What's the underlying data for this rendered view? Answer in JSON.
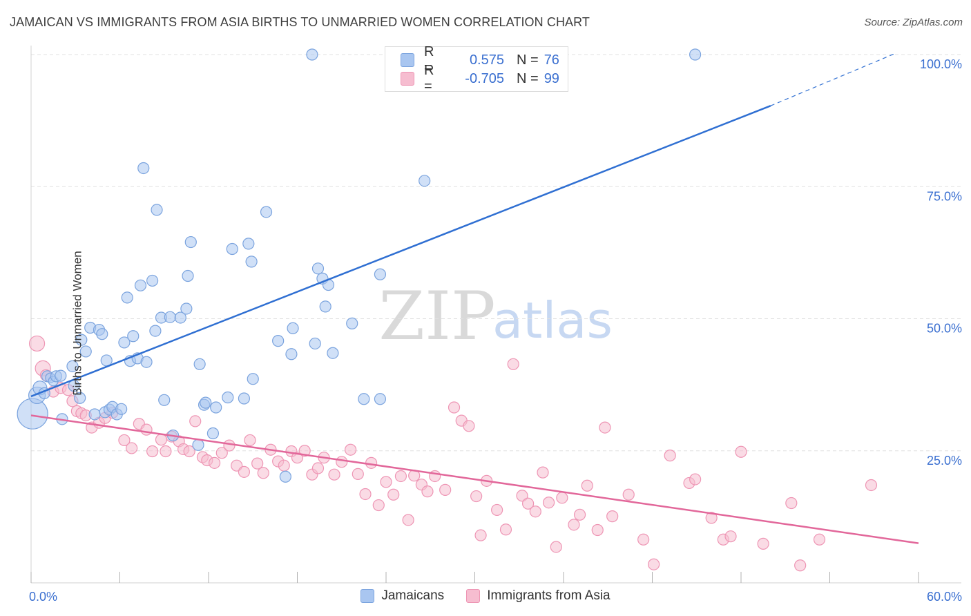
{
  "title": "JAMAICAN VS IMMIGRANTS FROM ASIA BIRTHS TO UNMARRIED WOMEN CORRELATION CHART",
  "source": "Source: ZipAtlas.com",
  "watermark": {
    "zip": "ZIP",
    "atlas": "atlas"
  },
  "colors": {
    "blue_fill": "#a9c6f0",
    "blue_stroke": "#7aa3de",
    "blue_line": "#2f6fd2",
    "pink_fill": "#f6bdd0",
    "pink_stroke": "#ee95b4",
    "pink_line": "#e2679a",
    "axis_text": "#3a6fd0",
    "grid": "#e0e0e0"
  },
  "legend": {
    "rows": [
      {
        "r_label": "R =",
        "r_value": "0.575",
        "n_label": "N =",
        "n_value": "76"
      },
      {
        "r_label": "R =",
        "r_value": "-0.705",
        "n_label": "N =",
        "n_value": "99"
      }
    ]
  },
  "chart_data": {
    "type": "scatter",
    "xlabel": "",
    "ylabel": "Births to Unmarried Women",
    "xlim": [
      0,
      60
    ],
    "ylim": [
      0,
      100
    ],
    "x_tick_labels": [
      "0.0%",
      "60.0%"
    ],
    "y_tick_labels": [
      "25.0%",
      "50.0%",
      "75.0%",
      "100.0%"
    ],
    "y_ticks": [
      25,
      50,
      75,
      100
    ],
    "legend_position": "bottom",
    "series": [
      {
        "name": "Jamaicans",
        "color": "#a9c6f0",
        "trend": {
          "x0": 0,
          "y0": 35.3,
          "x1": 50,
          "y1": 90.3,
          "dashed_to_x": 58.5,
          "dashed_to_y": 100.3
        },
        "points": [
          [
            0.1,
            32,
            22
          ],
          [
            0.4,
            35.5,
            12
          ],
          [
            0.6,
            36.9,
            10
          ],
          [
            0.9,
            35.9,
            8
          ],
          [
            1.1,
            39.1,
            8
          ],
          [
            1.3,
            38.8,
            7
          ],
          [
            1.5,
            38.2,
            7
          ],
          [
            1.7,
            39.1,
            8
          ],
          [
            2.0,
            39.2,
            8
          ],
          [
            2.1,
            31.0,
            8
          ],
          [
            2.8,
            41.0,
            8
          ],
          [
            2.9,
            37.3,
            8
          ],
          [
            3.3,
            35.0,
            8
          ],
          [
            3.4,
            46.0,
            8
          ],
          [
            3.7,
            43.8,
            8
          ],
          [
            4.0,
            48.3,
            8
          ],
          [
            4.3,
            31.9,
            8
          ],
          [
            4.6,
            47.9,
            8
          ],
          [
            4.8,
            47.1,
            8
          ],
          [
            5.0,
            32.3,
            8
          ],
          [
            5.1,
            42.1,
            8
          ],
          [
            5.3,
            32.8,
            8
          ],
          [
            5.5,
            33.3,
            8
          ],
          [
            5.8,
            31.9,
            8
          ],
          [
            6.1,
            32.9,
            8
          ],
          [
            6.3,
            45.5,
            8
          ],
          [
            6.5,
            54.0,
            8
          ],
          [
            6.7,
            42.0,
            8
          ],
          [
            6.9,
            46.7,
            8
          ],
          [
            7.2,
            42.5,
            8
          ],
          [
            7.4,
            56.3,
            8
          ],
          [
            7.6,
            78.5,
            8
          ],
          [
            7.8,
            41.8,
            8
          ],
          [
            8.2,
            57.2,
            8
          ],
          [
            8.4,
            47.7,
            8
          ],
          [
            8.5,
            70.6,
            8
          ],
          [
            8.8,
            50.2,
            8
          ],
          [
            9.0,
            34.6,
            8
          ],
          [
            9.4,
            50.3,
            8
          ],
          [
            9.6,
            27.9,
            8
          ],
          [
            10.1,
            50.2,
            8
          ],
          [
            10.5,
            51.9,
            8
          ],
          [
            10.6,
            58.1,
            8
          ],
          [
            10.8,
            64.5,
            8
          ],
          [
            11.3,
            26.1,
            8
          ],
          [
            11.4,
            41.4,
            8
          ],
          [
            11.7,
            33.7,
            8
          ],
          [
            11.8,
            34.1,
            8
          ],
          [
            12.3,
            28.3,
            8
          ],
          [
            12.5,
            33.2,
            8
          ],
          [
            13.3,
            35.1,
            8
          ],
          [
            13.6,
            63.2,
            8
          ],
          [
            14.4,
            34.9,
            8
          ],
          [
            14.7,
            64.2,
            8
          ],
          [
            14.9,
            60.8,
            8
          ],
          [
            15.0,
            38.6,
            8
          ],
          [
            15.9,
            70.2,
            8
          ],
          [
            16.7,
            45.8,
            8
          ],
          [
            17.2,
            20.1,
            8
          ],
          [
            17.6,
            43.3,
            8
          ],
          [
            17.7,
            48.2,
            8
          ],
          [
            19.0,
            100,
            8
          ],
          [
            19.2,
            45.3,
            8
          ],
          [
            19.4,
            59.5,
            8
          ],
          [
            19.7,
            57.6,
            8
          ],
          [
            19.9,
            52.3,
            8
          ],
          [
            20.1,
            56.4,
            8
          ],
          [
            20.4,
            43.5,
            8
          ],
          [
            21.7,
            49.1,
            8
          ],
          [
            22.5,
            34.8,
            8
          ],
          [
            23.6,
            34.8,
            8
          ],
          [
            23.6,
            58.4,
            8
          ],
          [
            26.6,
            76.1,
            8
          ],
          [
            35.9,
            100,
            8
          ],
          [
            44.9,
            100,
            8
          ]
        ]
      },
      {
        "name": "Immigrants from Asia",
        "color": "#f6bdd0",
        "trend": {
          "x0": 0,
          "y0": 31.7,
          "x1": 60,
          "y1": 7.5
        },
        "points": [
          [
            0.4,
            45.3,
            11
          ],
          [
            0.8,
            40.6,
            11
          ],
          [
            1.0,
            39.3,
            8
          ],
          [
            1.5,
            36.2,
            8
          ],
          [
            2.0,
            36.9,
            8
          ],
          [
            2.5,
            36.5,
            8
          ],
          [
            2.8,
            34.4,
            8
          ],
          [
            3.1,
            32.5,
            8
          ],
          [
            3.4,
            32.1,
            8
          ],
          [
            3.7,
            31.7,
            8
          ],
          [
            4.1,
            29.4,
            8
          ],
          [
            4.6,
            30.3,
            8
          ],
          [
            5.0,
            31.2,
            8
          ],
          [
            5.5,
            32.2,
            8
          ],
          [
            6.3,
            27.0,
            8
          ],
          [
            6.8,
            25.5,
            8
          ],
          [
            7.3,
            30.1,
            8
          ],
          [
            7.8,
            29.0,
            8
          ],
          [
            8.2,
            24.9,
            8
          ],
          [
            8.8,
            27.1,
            8
          ],
          [
            9.1,
            24.9,
            8
          ],
          [
            9.5,
            27.7,
            8
          ],
          [
            10.0,
            26.8,
            8
          ],
          [
            10.3,
            25.3,
            8
          ],
          [
            10.7,
            24.9,
            8
          ],
          [
            11.1,
            30.6,
            8
          ],
          [
            11.6,
            23.8,
            8
          ],
          [
            11.9,
            23.2,
            8
          ],
          [
            12.4,
            22.7,
            8
          ],
          [
            12.9,
            24.6,
            8
          ],
          [
            13.4,
            26.0,
            8
          ],
          [
            13.9,
            22.2,
            8
          ],
          [
            14.4,
            21.0,
            8
          ],
          [
            14.8,
            27.0,
            8
          ],
          [
            15.3,
            22.6,
            8
          ],
          [
            15.7,
            20.8,
            8
          ],
          [
            16.2,
            25.2,
            8
          ],
          [
            16.7,
            23.0,
            8
          ],
          [
            17.1,
            22.2,
            8
          ],
          [
            17.6,
            24.9,
            8
          ],
          [
            18.0,
            23.7,
            8
          ],
          [
            18.5,
            25.0,
            8
          ],
          [
            19.0,
            20.5,
            8
          ],
          [
            19.4,
            21.7,
            8
          ],
          [
            19.8,
            23.7,
            8
          ],
          [
            20.5,
            20.5,
            8
          ],
          [
            21.0,
            22.9,
            8
          ],
          [
            21.6,
            25.2,
            8
          ],
          [
            22.1,
            20.6,
            8
          ],
          [
            22.6,
            16.8,
            8
          ],
          [
            23.0,
            22.7,
            8
          ],
          [
            23.5,
            14.7,
            8
          ],
          [
            24.0,
            19.1,
            8
          ],
          [
            24.5,
            16.7,
            8
          ],
          [
            25.0,
            20.2,
            8
          ],
          [
            25.5,
            11.9,
            8
          ],
          [
            25.9,
            20.3,
            8
          ],
          [
            26.4,
            18.6,
            8
          ],
          [
            26.8,
            17.3,
            8
          ],
          [
            27.3,
            20.2,
            8
          ],
          [
            28.0,
            17.6,
            8
          ],
          [
            28.6,
            33.2,
            8
          ],
          [
            29.1,
            30.7,
            8
          ],
          [
            29.6,
            29.7,
            8
          ],
          [
            30.1,
            16.4,
            8
          ],
          [
            30.4,
            9.0,
            8
          ],
          [
            30.8,
            19.3,
            8
          ],
          [
            31.5,
            13.8,
            8
          ],
          [
            32.1,
            10.1,
            8
          ],
          [
            32.6,
            41.4,
            8
          ],
          [
            33.2,
            16.5,
            8
          ],
          [
            33.6,
            15.0,
            8
          ],
          [
            34.1,
            13.5,
            8
          ],
          [
            34.6,
            20.9,
            8
          ],
          [
            35.0,
            15.2,
            8
          ],
          [
            35.5,
            6.8,
            8
          ],
          [
            35.9,
            16.1,
            8
          ],
          [
            36.7,
            11.0,
            8
          ],
          [
            37.1,
            12.9,
            8
          ],
          [
            37.6,
            18.4,
            8
          ],
          [
            38.3,
            10.0,
            8
          ],
          [
            38.8,
            29.4,
            8
          ],
          [
            39.3,
            12.6,
            8
          ],
          [
            40.4,
            16.7,
            8
          ],
          [
            41.4,
            8.2,
            8
          ],
          [
            42.1,
            3.5,
            8
          ],
          [
            43.2,
            24.1,
            8
          ],
          [
            44.5,
            18.9,
            8
          ],
          [
            44.9,
            19.6,
            8
          ],
          [
            46.0,
            12.3,
            8
          ],
          [
            46.8,
            8.2,
            8
          ],
          [
            47.3,
            8.8,
            8
          ],
          [
            48.0,
            24.8,
            8
          ],
          [
            49.5,
            7.4,
            8
          ],
          [
            51.4,
            15.1,
            8
          ],
          [
            52.0,
            3.3,
            8
          ],
          [
            53.3,
            8.2,
            8
          ],
          [
            56.8,
            18.5,
            8
          ]
        ]
      }
    ]
  },
  "bottom_legend": [
    "Jamaicans",
    "Immigrants from Asia"
  ]
}
